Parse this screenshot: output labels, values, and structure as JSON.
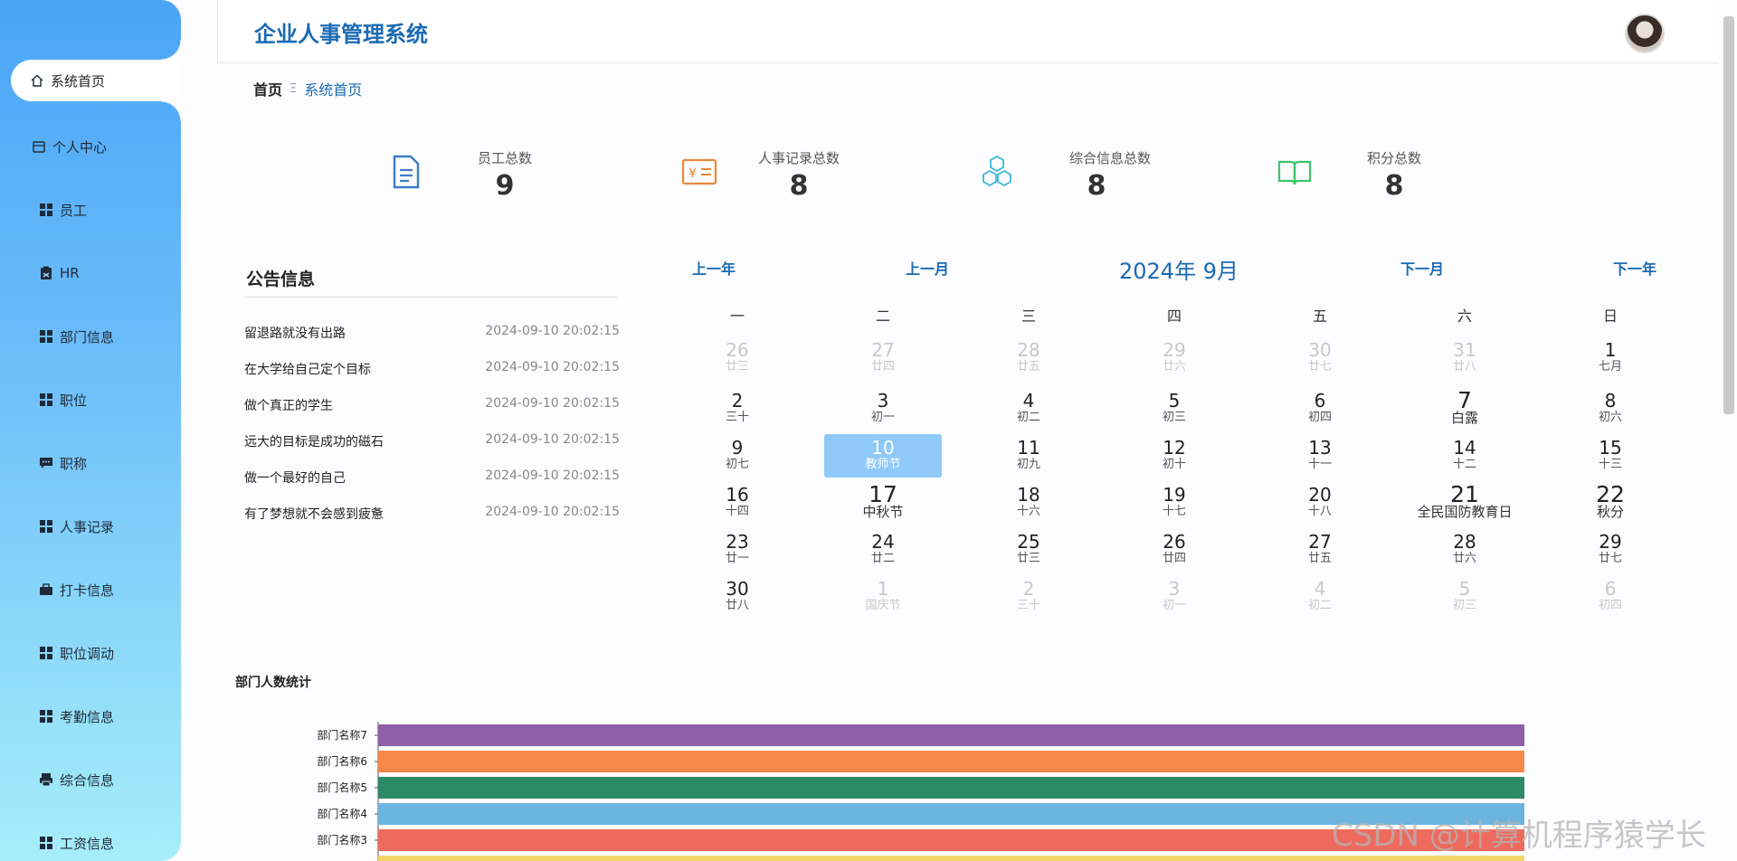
{
  "app": {
    "title": "企业人事管理系统"
  },
  "sidebar": {
    "items": [
      {
        "label": "系统首页",
        "icon": "home-icon"
      },
      {
        "label": "个人中心",
        "icon": "calendar-icon"
      },
      {
        "label": "员工",
        "icon": "grid-icon"
      },
      {
        "label": "HR",
        "icon": "clipboard-icon"
      },
      {
        "label": "部门信息",
        "icon": "grid-icon"
      },
      {
        "label": "职位",
        "icon": "grid-icon"
      },
      {
        "label": "职称",
        "icon": "chat-icon"
      },
      {
        "label": "人事记录",
        "icon": "grid-icon"
      },
      {
        "label": "打卡信息",
        "icon": "briefcase-icon"
      },
      {
        "label": "职位调动",
        "icon": "grid-icon"
      },
      {
        "label": "考勤信息",
        "icon": "grid-icon"
      },
      {
        "label": "综合信息",
        "icon": "printer-icon"
      },
      {
        "label": "工资信息",
        "icon": "grid-icon"
      }
    ]
  },
  "breadcrumb": {
    "home": "首页",
    "separator": "Ξ",
    "current": "系统首页"
  },
  "stats": [
    {
      "label": "员工总数",
      "value": "9",
      "color": "#3a7bc8",
      "icon": "document-icon"
    },
    {
      "label": "人事记录总数",
      "value": "8",
      "color": "#e58a3a",
      "icon": "yen-icon"
    },
    {
      "label": "综合信息总数",
      "value": "8",
      "color": "#3ab7d8",
      "icon": "cubes-icon"
    },
    {
      "label": "积分总数",
      "value": "8",
      "color": "#3bc46b",
      "icon": "book-icon"
    }
  ],
  "notice": {
    "title": "公告信息",
    "items": [
      {
        "title": "留退路就没有出路",
        "date": "2024-09-10 20:02:15"
      },
      {
        "title": "在大学给自己定个目标",
        "date": "2024-09-10 20:02:15"
      },
      {
        "title": "做个真正的学生",
        "date": "2024-09-10 20:02:15"
      },
      {
        "title": "远大的目标是成功的磁石",
        "date": "2024-09-10 20:02:15"
      },
      {
        "title": "做一个最好的自己",
        "date": "2024-09-10 20:02:15"
      },
      {
        "title": "有了梦想就不会感到疲惫",
        "date": "2024-09-10 20:02:15"
      }
    ]
  },
  "calendar": {
    "title": "2024年 9月",
    "prev_year": "上一年",
    "prev_month": "上一月",
    "next_month": "下一月",
    "next_year": "下一年",
    "weekdays": [
      "一",
      "二",
      "三",
      "四",
      "五",
      "六",
      "日"
    ],
    "weeks": [
      [
        {
          "d": "26",
          "l": "廿三",
          "dim": true
        },
        {
          "d": "27",
          "l": "廿四",
          "dim": true
        },
        {
          "d": "28",
          "l": "廿五",
          "dim": true
        },
        {
          "d": "29",
          "l": "廿六",
          "dim": true
        },
        {
          "d": "30",
          "l": "廿七",
          "dim": true
        },
        {
          "d": "31",
          "l": "廿八",
          "dim": true
        },
        {
          "d": "1",
          "l": "七月"
        }
      ],
      [
        {
          "d": "2",
          "l": "三十"
        },
        {
          "d": "3",
          "l": "初一"
        },
        {
          "d": "4",
          "l": "初二"
        },
        {
          "d": "5",
          "l": "初三"
        },
        {
          "d": "6",
          "l": "初四"
        },
        {
          "d": "7",
          "l": "白露",
          "big": true
        },
        {
          "d": "8",
          "l": "初六"
        }
      ],
      [
        {
          "d": "9",
          "l": "初七"
        },
        {
          "d": "10",
          "l": "教师节",
          "today": true
        },
        {
          "d": "11",
          "l": "初九"
        },
        {
          "d": "12",
          "l": "初十"
        },
        {
          "d": "13",
          "l": "十一"
        },
        {
          "d": "14",
          "l": "十二"
        },
        {
          "d": "15",
          "l": "十三"
        }
      ],
      [
        {
          "d": "16",
          "l": "十四"
        },
        {
          "d": "17",
          "l": "中秋节",
          "big": true
        },
        {
          "d": "18",
          "l": "十六"
        },
        {
          "d": "19",
          "l": "十七"
        },
        {
          "d": "20",
          "l": "十八"
        },
        {
          "d": "21",
          "l": "全民国防教育日",
          "big": true
        },
        {
          "d": "22",
          "l": "秋分",
          "big": true
        }
      ],
      [
        {
          "d": "23",
          "l": "廿一"
        },
        {
          "d": "24",
          "l": "廿二"
        },
        {
          "d": "25",
          "l": "廿三"
        },
        {
          "d": "26",
          "l": "廿四"
        },
        {
          "d": "27",
          "l": "廿五"
        },
        {
          "d": "28",
          "l": "廿六"
        },
        {
          "d": "29",
          "l": "廿七"
        }
      ],
      [
        {
          "d": "30",
          "l": "廿八"
        },
        {
          "d": "1",
          "l": "国庆节",
          "dim": true
        },
        {
          "d": "2",
          "l": "三十",
          "dim": true
        },
        {
          "d": "3",
          "l": "初一",
          "dim": true
        },
        {
          "d": "4",
          "l": "初二",
          "dim": true
        },
        {
          "d": "5",
          "l": "初三",
          "dim": true
        },
        {
          "d": "6",
          "l": "初四",
          "dim": true
        }
      ]
    ]
  },
  "chart_data": {
    "type": "bar",
    "orientation": "horizontal",
    "title": "部门人数统计",
    "categories": [
      "部门名称7",
      "部门名称6",
      "部门名称5",
      "部门名称4",
      "部门名称3"
    ],
    "values": [
      1,
      1,
      1,
      1,
      1
    ],
    "colors": [
      "#8f5fa8",
      "#f5884a",
      "#2c8a64",
      "#6cb5df",
      "#ee6a5d"
    ]
  },
  "watermark": "CSDN @计算机程序猿学长"
}
